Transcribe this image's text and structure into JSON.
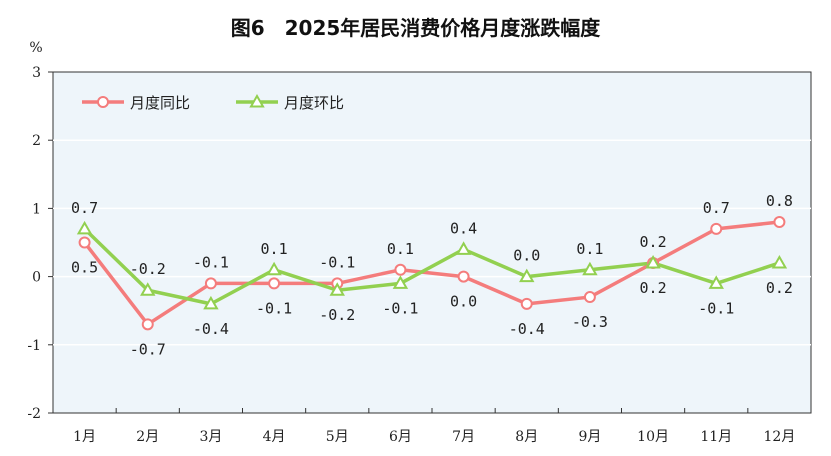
{
  "chart_data": {
    "type": "line",
    "title": "图6　2025年居民消费价格月度涨跌幅度",
    "ylabel": "%",
    "xlabel": "",
    "categories": [
      "1月",
      "2月",
      "3月",
      "4月",
      "5月",
      "6月",
      "7月",
      "8月",
      "9月",
      "10月",
      "11月",
      "12月"
    ],
    "ylim": [
      -2,
      3
    ],
    "yticks": [
      3,
      2,
      1,
      0,
      -1,
      -2
    ],
    "grid": true,
    "legend": "top-left",
    "series": [
      {
        "name": "月度同比",
        "color": "#f47c7c",
        "marker": "circle",
        "values": [
          0.5,
          -0.7,
          -0.1,
          -0.1,
          -0.1,
          0.1,
          0.0,
          -0.4,
          -0.3,
          0.2,
          0.7,
          0.8
        ]
      },
      {
        "name": "月度环比",
        "color": "#92d050",
        "marker": "triangle",
        "values": [
          0.7,
          -0.2,
          -0.4,
          0.1,
          -0.2,
          -0.1,
          0.4,
          0.0,
          0.1,
          0.2,
          -0.1,
          0.2
        ]
      }
    ]
  }
}
